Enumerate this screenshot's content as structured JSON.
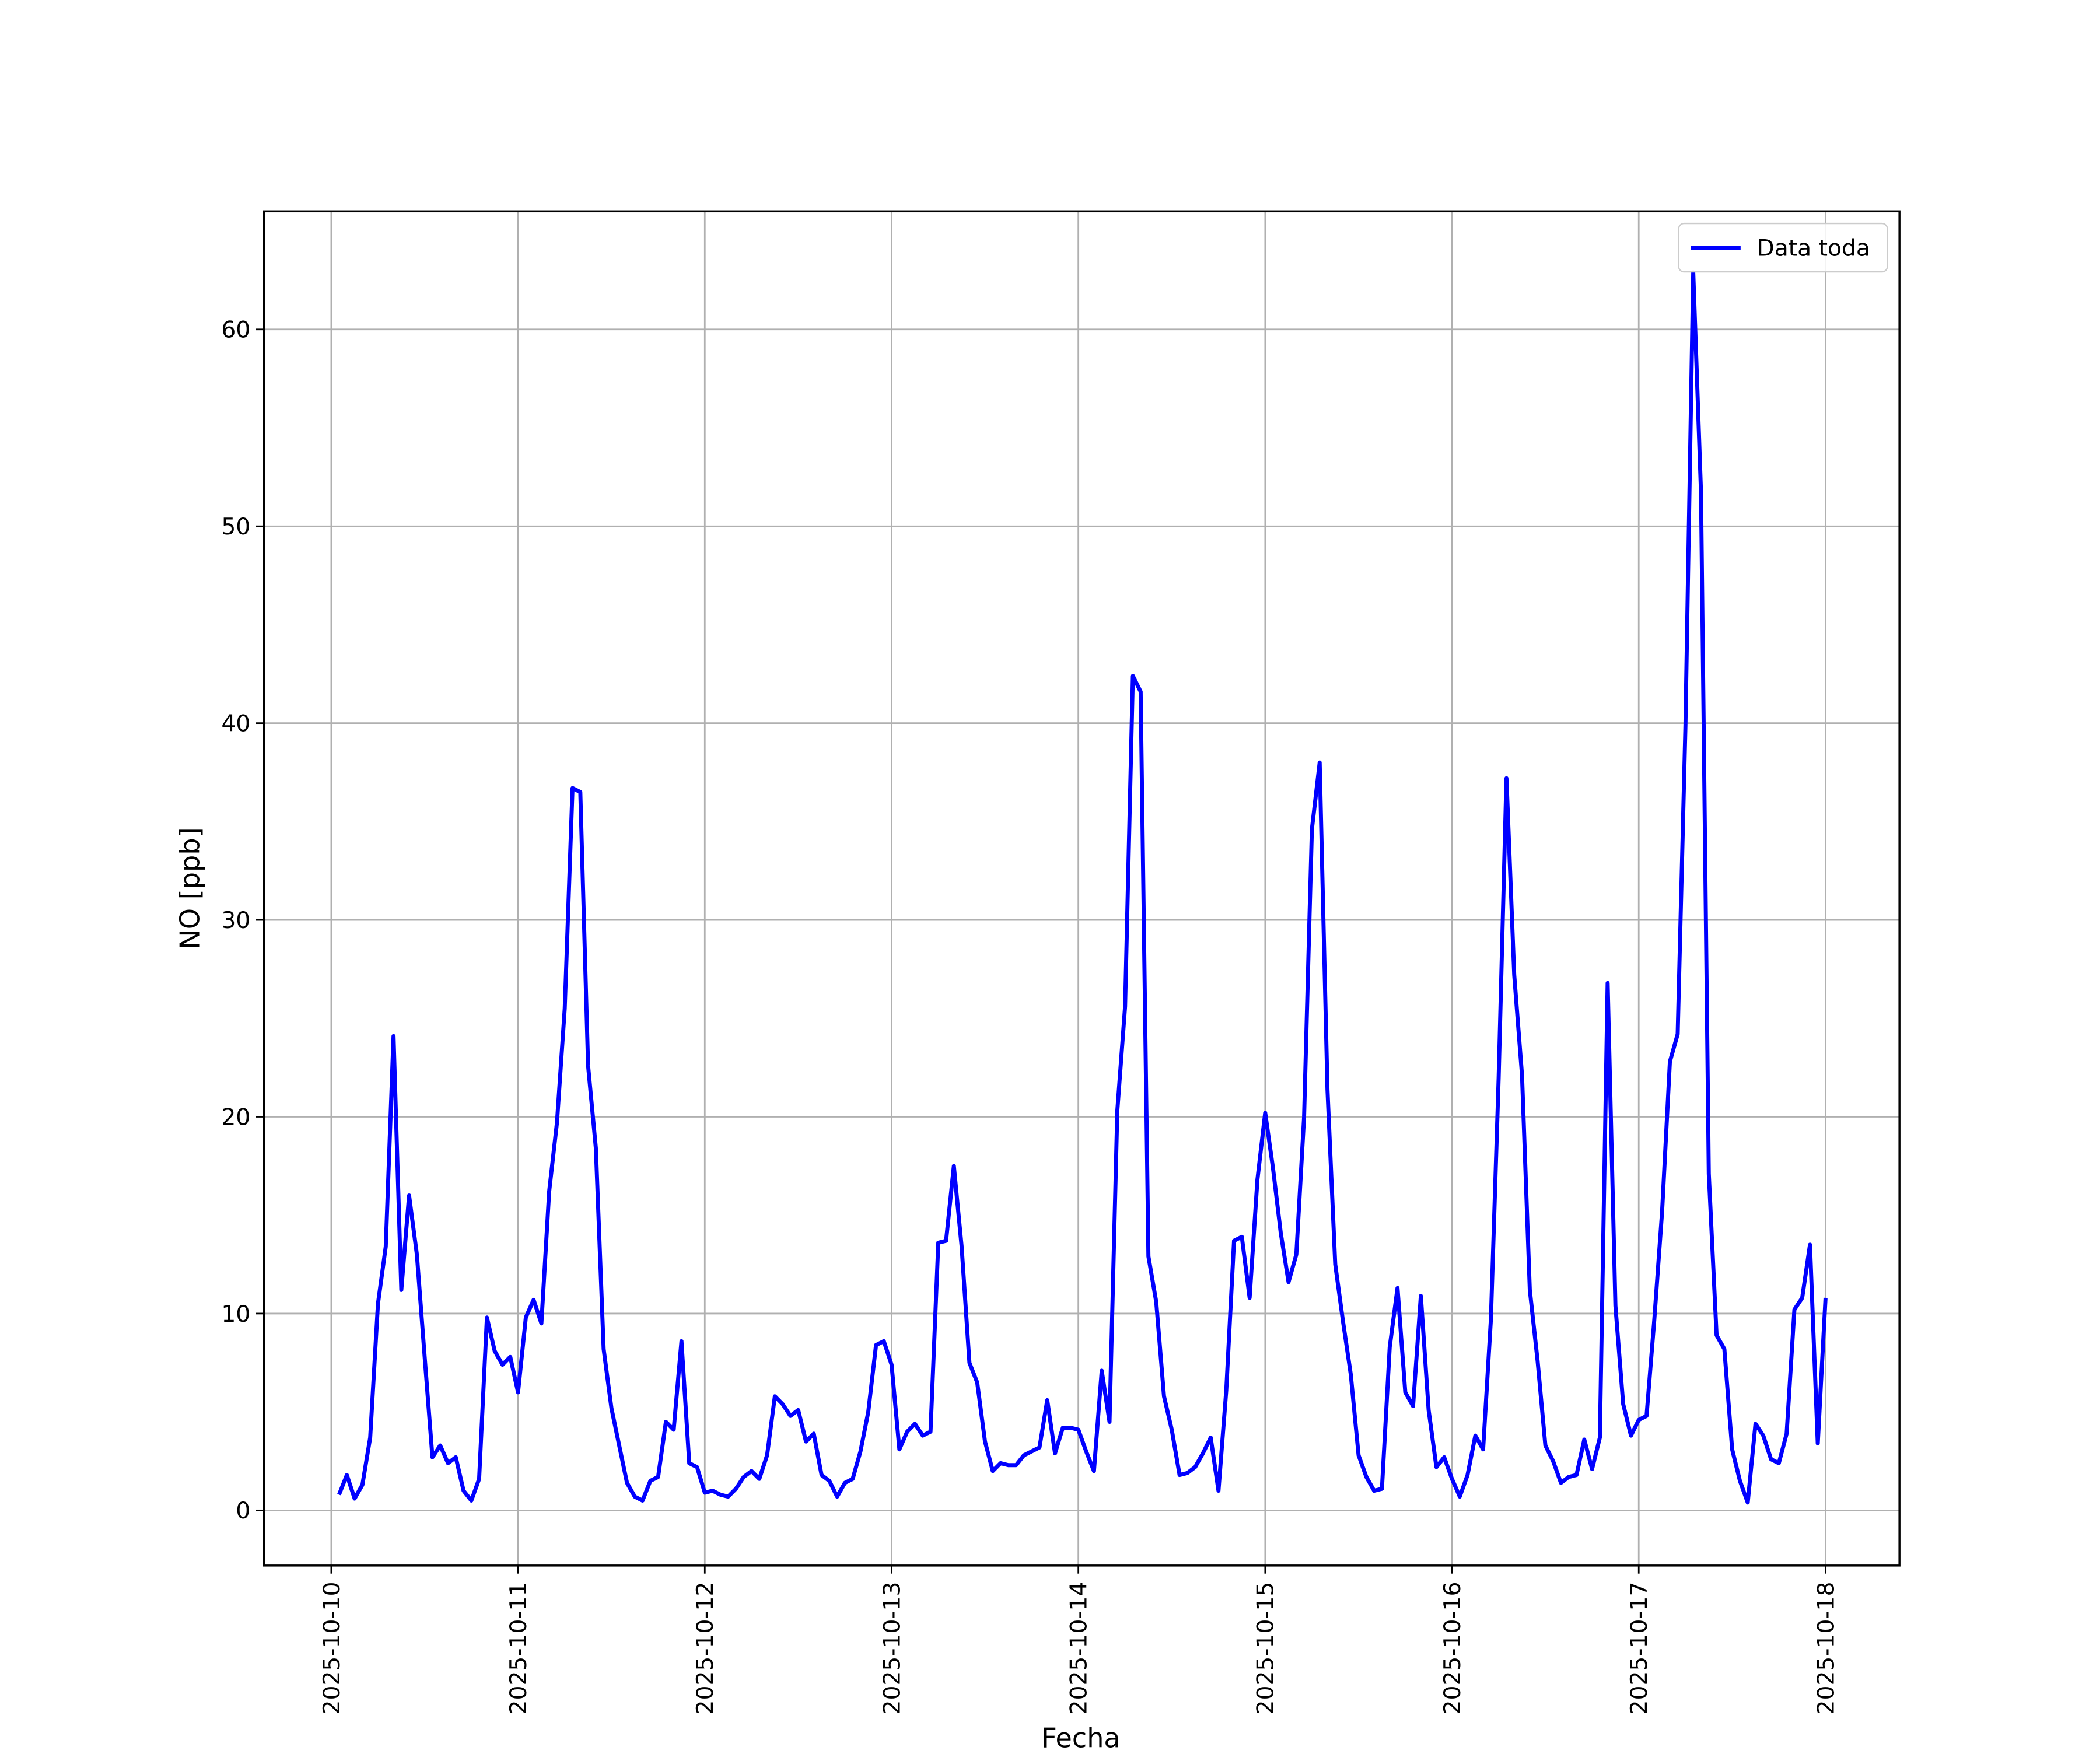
{
  "chart_data": {
    "type": "line",
    "xlabel": "Fecha",
    "ylabel": "NO [ppb]",
    "x": [
      "2025-10-10 01:00",
      "2025-10-10 02:00",
      "2025-10-10 03:00",
      "2025-10-10 04:00",
      "2025-10-10 05:00",
      "2025-10-10 06:00",
      "2025-10-10 07:00",
      "2025-10-10 08:00",
      "2025-10-10 09:00",
      "2025-10-10 10:00",
      "2025-10-10 11:00",
      "2025-10-10 12:00",
      "2025-10-10 13:00",
      "2025-10-10 14:00",
      "2025-10-10 15:00",
      "2025-10-10 16:00",
      "2025-10-10 17:00",
      "2025-10-10 18:00",
      "2025-10-10 19:00",
      "2025-10-10 20:00",
      "2025-10-10 21:00",
      "2025-10-10 22:00",
      "2025-10-10 23:00",
      "2025-10-11 00:00",
      "2025-10-11 01:00",
      "2025-10-11 02:00",
      "2025-10-11 03:00",
      "2025-10-11 04:00",
      "2025-10-11 05:00",
      "2025-10-11 06:00",
      "2025-10-11 07:00",
      "2025-10-11 08:00",
      "2025-10-11 09:00",
      "2025-10-11 10:00",
      "2025-10-11 11:00",
      "2025-10-11 12:00",
      "2025-10-11 13:00",
      "2025-10-11 14:00",
      "2025-10-11 15:00",
      "2025-10-11 16:00",
      "2025-10-11 17:00",
      "2025-10-11 18:00",
      "2025-10-11 19:00",
      "2025-10-11 20:00",
      "2025-10-11 21:00",
      "2025-10-11 22:00",
      "2025-10-11 23:00",
      "2025-10-12 00:00",
      "2025-10-12 01:00",
      "2025-10-12 02:00",
      "2025-10-12 03:00",
      "2025-10-12 04:00",
      "2025-10-12 05:00",
      "2025-10-12 06:00",
      "2025-10-12 07:00",
      "2025-10-12 08:00",
      "2025-10-12 09:00",
      "2025-10-12 10:00",
      "2025-10-12 11:00",
      "2025-10-12 12:00",
      "2025-10-12 13:00",
      "2025-10-12 14:00",
      "2025-10-12 15:00",
      "2025-10-12 16:00",
      "2025-10-12 17:00",
      "2025-10-12 18:00",
      "2025-10-12 19:00",
      "2025-10-12 20:00",
      "2025-10-12 21:00",
      "2025-10-12 22:00",
      "2025-10-12 23:00",
      "2025-10-13 00:00",
      "2025-10-13 01:00",
      "2025-10-13 02:00",
      "2025-10-13 03:00",
      "2025-10-13 04:00",
      "2025-10-13 05:00",
      "2025-10-13 06:00",
      "2025-10-13 07:00",
      "2025-10-13 08:00",
      "2025-10-13 09:00",
      "2025-10-13 10:00",
      "2025-10-13 11:00",
      "2025-10-13 12:00",
      "2025-10-13 13:00",
      "2025-10-13 14:00",
      "2025-10-13 15:00",
      "2025-10-13 16:00",
      "2025-10-13 17:00",
      "2025-10-13 18:00",
      "2025-10-13 19:00",
      "2025-10-13 20:00",
      "2025-10-13 21:00",
      "2025-10-13 22:00",
      "2025-10-13 23:00",
      "2025-10-14 00:00",
      "2025-10-14 01:00",
      "2025-10-14 02:00",
      "2025-10-14 03:00",
      "2025-10-14 04:00",
      "2025-10-14 05:00",
      "2025-10-14 06:00",
      "2025-10-14 07:00",
      "2025-10-14 08:00",
      "2025-10-14 09:00",
      "2025-10-14 10:00",
      "2025-10-14 11:00",
      "2025-10-14 12:00",
      "2025-10-14 13:00",
      "2025-10-14 14:00",
      "2025-10-14 15:00",
      "2025-10-14 16:00",
      "2025-10-14 17:00",
      "2025-10-14 18:00",
      "2025-10-14 19:00",
      "2025-10-14 20:00",
      "2025-10-14 21:00",
      "2025-10-14 22:00",
      "2025-10-14 23:00",
      "2025-10-15 00:00",
      "2025-10-15 01:00",
      "2025-10-15 02:00",
      "2025-10-15 03:00",
      "2025-10-15 04:00",
      "2025-10-15 05:00",
      "2025-10-15 06:00",
      "2025-10-15 07:00",
      "2025-10-15 08:00",
      "2025-10-15 09:00",
      "2025-10-15 10:00",
      "2025-10-15 11:00",
      "2025-10-15 12:00",
      "2025-10-15 13:00",
      "2025-10-15 14:00",
      "2025-10-15 15:00",
      "2025-10-15 16:00",
      "2025-10-15 17:00",
      "2025-10-15 18:00",
      "2025-10-15 19:00",
      "2025-10-15 20:00",
      "2025-10-15 21:00",
      "2025-10-15 22:00",
      "2025-10-15 23:00",
      "2025-10-16 00:00",
      "2025-10-16 01:00",
      "2025-10-16 02:00",
      "2025-10-16 03:00",
      "2025-10-16 04:00",
      "2025-10-16 05:00",
      "2025-10-16 06:00",
      "2025-10-16 07:00",
      "2025-10-16 08:00",
      "2025-10-16 09:00",
      "2025-10-16 10:00",
      "2025-10-16 11:00",
      "2025-10-16 12:00",
      "2025-10-16 13:00",
      "2025-10-16 14:00",
      "2025-10-16 15:00",
      "2025-10-16 16:00",
      "2025-10-16 17:00",
      "2025-10-16 18:00",
      "2025-10-16 19:00",
      "2025-10-16 20:00",
      "2025-10-16 21:00",
      "2025-10-16 22:00",
      "2025-10-16 23:00",
      "2025-10-17 00:00",
      "2025-10-17 01:00",
      "2025-10-17 02:00",
      "2025-10-17 03:00",
      "2025-10-17 04:00",
      "2025-10-17 05:00",
      "2025-10-17 06:00",
      "2025-10-17 07:00",
      "2025-10-17 08:00",
      "2025-10-17 09:00",
      "2025-10-17 10:00",
      "2025-10-17 11:00",
      "2025-10-17 12:00",
      "2025-10-17 13:00",
      "2025-10-17 14:00",
      "2025-10-17 15:00",
      "2025-10-17 16:00",
      "2025-10-17 17:00",
      "2025-10-17 18:00",
      "2025-10-17 19:00",
      "2025-10-17 20:00",
      "2025-10-17 21:00",
      "2025-10-17 22:00",
      "2025-10-17 23:00",
      "2025-10-18 00:00"
    ],
    "series": [
      {
        "name": "Data toda",
        "color": "#0000ff",
        "values": [
          0.8,
          1.8,
          0.6,
          1.3,
          3.7,
          10.5,
          13.4,
          24.1,
          11.2,
          16.0,
          13.0,
          7.8,
          2.7,
          3.3,
          2.4,
          2.7,
          1.0,
          0.5,
          1.6,
          9.8,
          8.1,
          7.4,
          7.8,
          6.0,
          9.8,
          10.7,
          9.5,
          16.2,
          19.7,
          25.5,
          36.7,
          36.5,
          22.6,
          18.4,
          8.2,
          5.2,
          3.3,
          1.4,
          0.7,
          0.5,
          1.5,
          1.7,
          4.5,
          4.1,
          8.6,
          2.4,
          2.2,
          0.9,
          1.0,
          0.8,
          0.7,
          1.1,
          1.7,
          2.0,
          1.6,
          2.8,
          5.8,
          5.4,
          4.8,
          5.1,
          3.5,
          3.9,
          1.8,
          1.5,
          0.7,
          1.4,
          1.6,
          3.0,
          5.0,
          8.4,
          8.6,
          7.4,
          3.1,
          4.0,
          4.4,
          3.8,
          4.0,
          13.6,
          13.7,
          17.5,
          13.4,
          7.5,
          6.5,
          3.5,
          2.0,
          2.4,
          2.3,
          2.3,
          2.8,
          3.0,
          3.2,
          5.6,
          2.9,
          4.2,
          4.2,
          4.1,
          3.0,
          2.0,
          7.1,
          4.5,
          20.3,
          25.6,
          42.4,
          41.6,
          12.9,
          10.6,
          5.8,
          4.1,
          1.8,
          1.9,
          2.2,
          2.9,
          3.7,
          1.0,
          6.1,
          13.7,
          13.9,
          10.8,
          16.8,
          20.2,
          17.4,
          14.1,
          11.6,
          13.0,
          20.0,
          34.6,
          38.0,
          21.4,
          12.5,
          9.6,
          6.9,
          2.8,
          1.7,
          1.0,
          1.1,
          8.3,
          11.3,
          6.0,
          5.3,
          10.9,
          5.1,
          2.2,
          2.7,
          1.6,
          0.7,
          1.8,
          3.8,
          3.1,
          9.7,
          22.0,
          37.2,
          27.2,
          22.1,
          11.2,
          7.6,
          3.3,
          2.5,
          1.4,
          1.7,
          1.8,
          3.6,
          2.1,
          3.7,
          26.8,
          10.4,
          5.4,
          3.8,
          4.6,
          4.8,
          9.7,
          15.2,
          22.8,
          24.2,
          39.9,
          62.9,
          51.7,
          17.1,
          8.9,
          8.2,
          3.1,
          1.5,
          0.4,
          4.4,
          3.8,
          2.6,
          2.4,
          3.9,
          10.2,
          10.8,
          13.5,
          3.4,
          10.8
        ]
      }
    ],
    "xlim": [
      "2025-10-09 15:20",
      "2025-10-18 09:30"
    ],
    "xticks": [
      "2025-10-10",
      "2025-10-11",
      "2025-10-12",
      "2025-10-13",
      "2025-10-14",
      "2025-10-15",
      "2025-10-16",
      "2025-10-17",
      "2025-10-18"
    ],
    "ylim": [
      -2.8,
      66.0
    ],
    "yticks": [
      0,
      10,
      20,
      30,
      40,
      50,
      60
    ],
    "grid": true,
    "legend": "upper right"
  }
}
